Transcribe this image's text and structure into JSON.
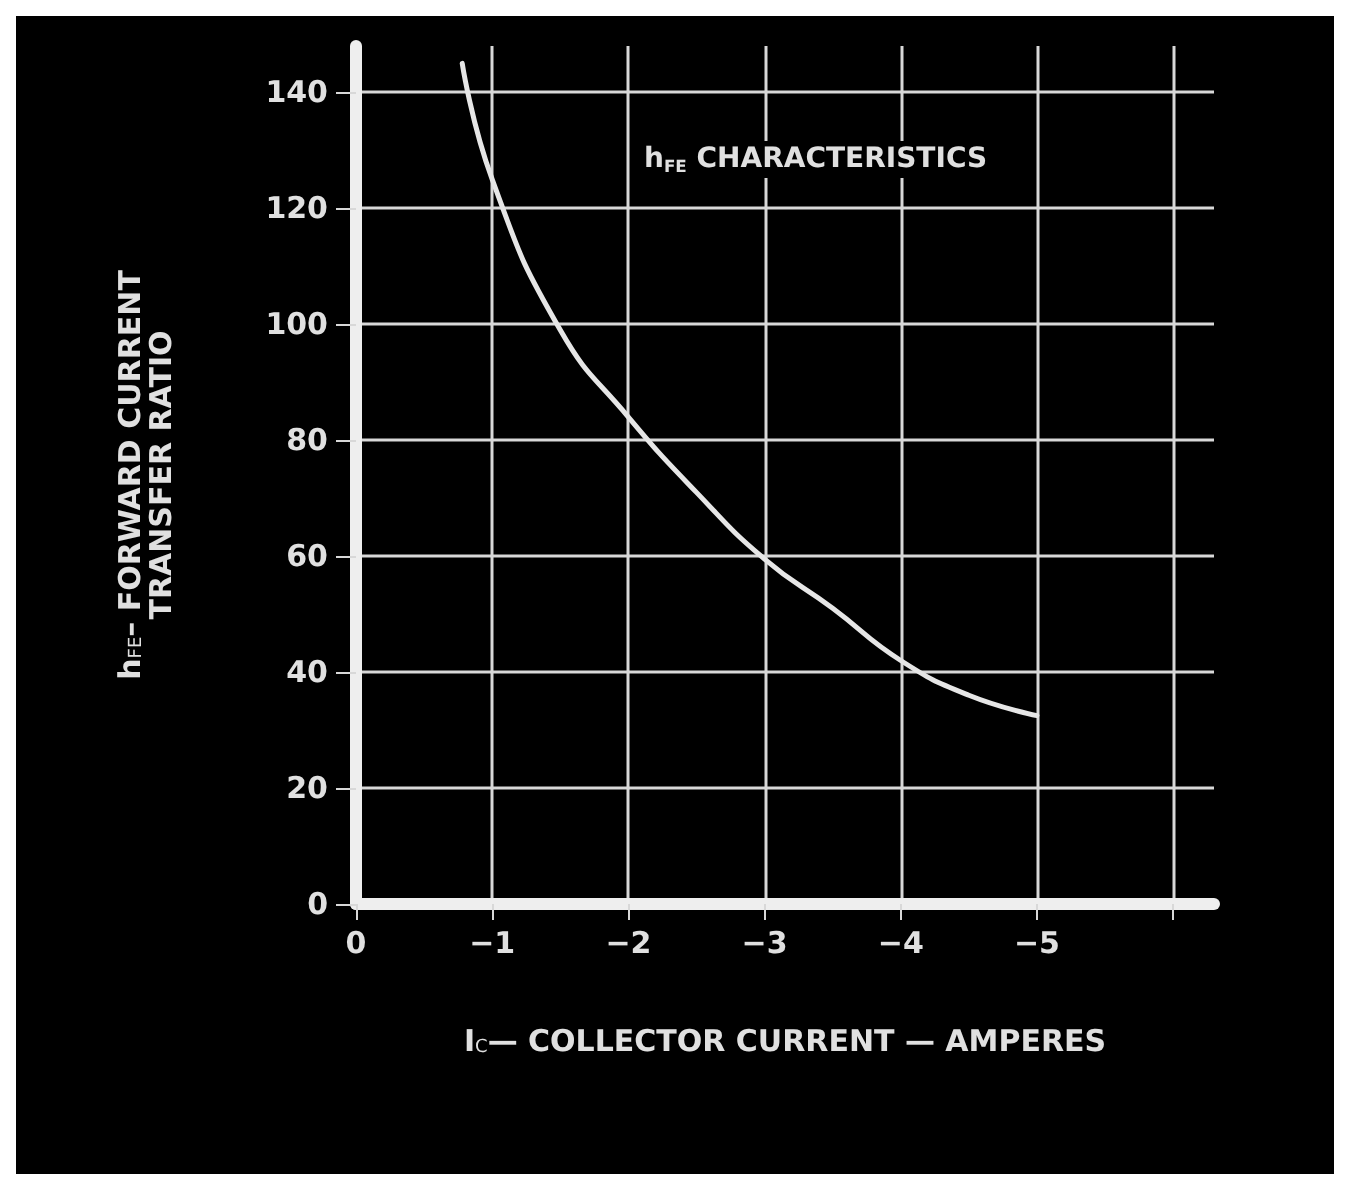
{
  "chart_data": {
    "type": "line",
    "title": "h$_{FE}$ CHARACTERISTICS",
    "xlabel": "I$_{C}$— COLLECTOR CURRENT — AMPERES",
    "ylabel": "h$_{FE}$– FORWARD CURRENT\nTRANSFER RATIO",
    "x": [
      -0.78,
      -1,
      -1.5,
      -2,
      -2.5,
      -3,
      -3.5,
      -4,
      -4.5,
      -5
    ],
    "series": [
      {
        "color": "#e6e6e6",
        "values": [
          145,
          125,
          99,
          84,
          71,
          59.5,
          51,
          42,
          36,
          32.5
        ]
      }
    ],
    "xlim": [
      0,
      -6.3
    ],
    "xticks": [
      0,
      {
        "value": -1,
        "label": "−1"
      },
      {
        "value": -2,
        "label": "−2"
      },
      {
        "value": -3,
        "label": "−3"
      },
      {
        "value": -4,
        "label": "−4"
      },
      {
        "value": -5,
        "label": "−5"
      },
      {
        "value": -6,
        "label": null
      }
    ],
    "ylim": [
      0,
      148
    ],
    "yticks": [
      0,
      20,
      40,
      60,
      80,
      100,
      120,
      140
    ],
    "grid": true,
    "marker": "none",
    "line_style": "solid"
  }
}
